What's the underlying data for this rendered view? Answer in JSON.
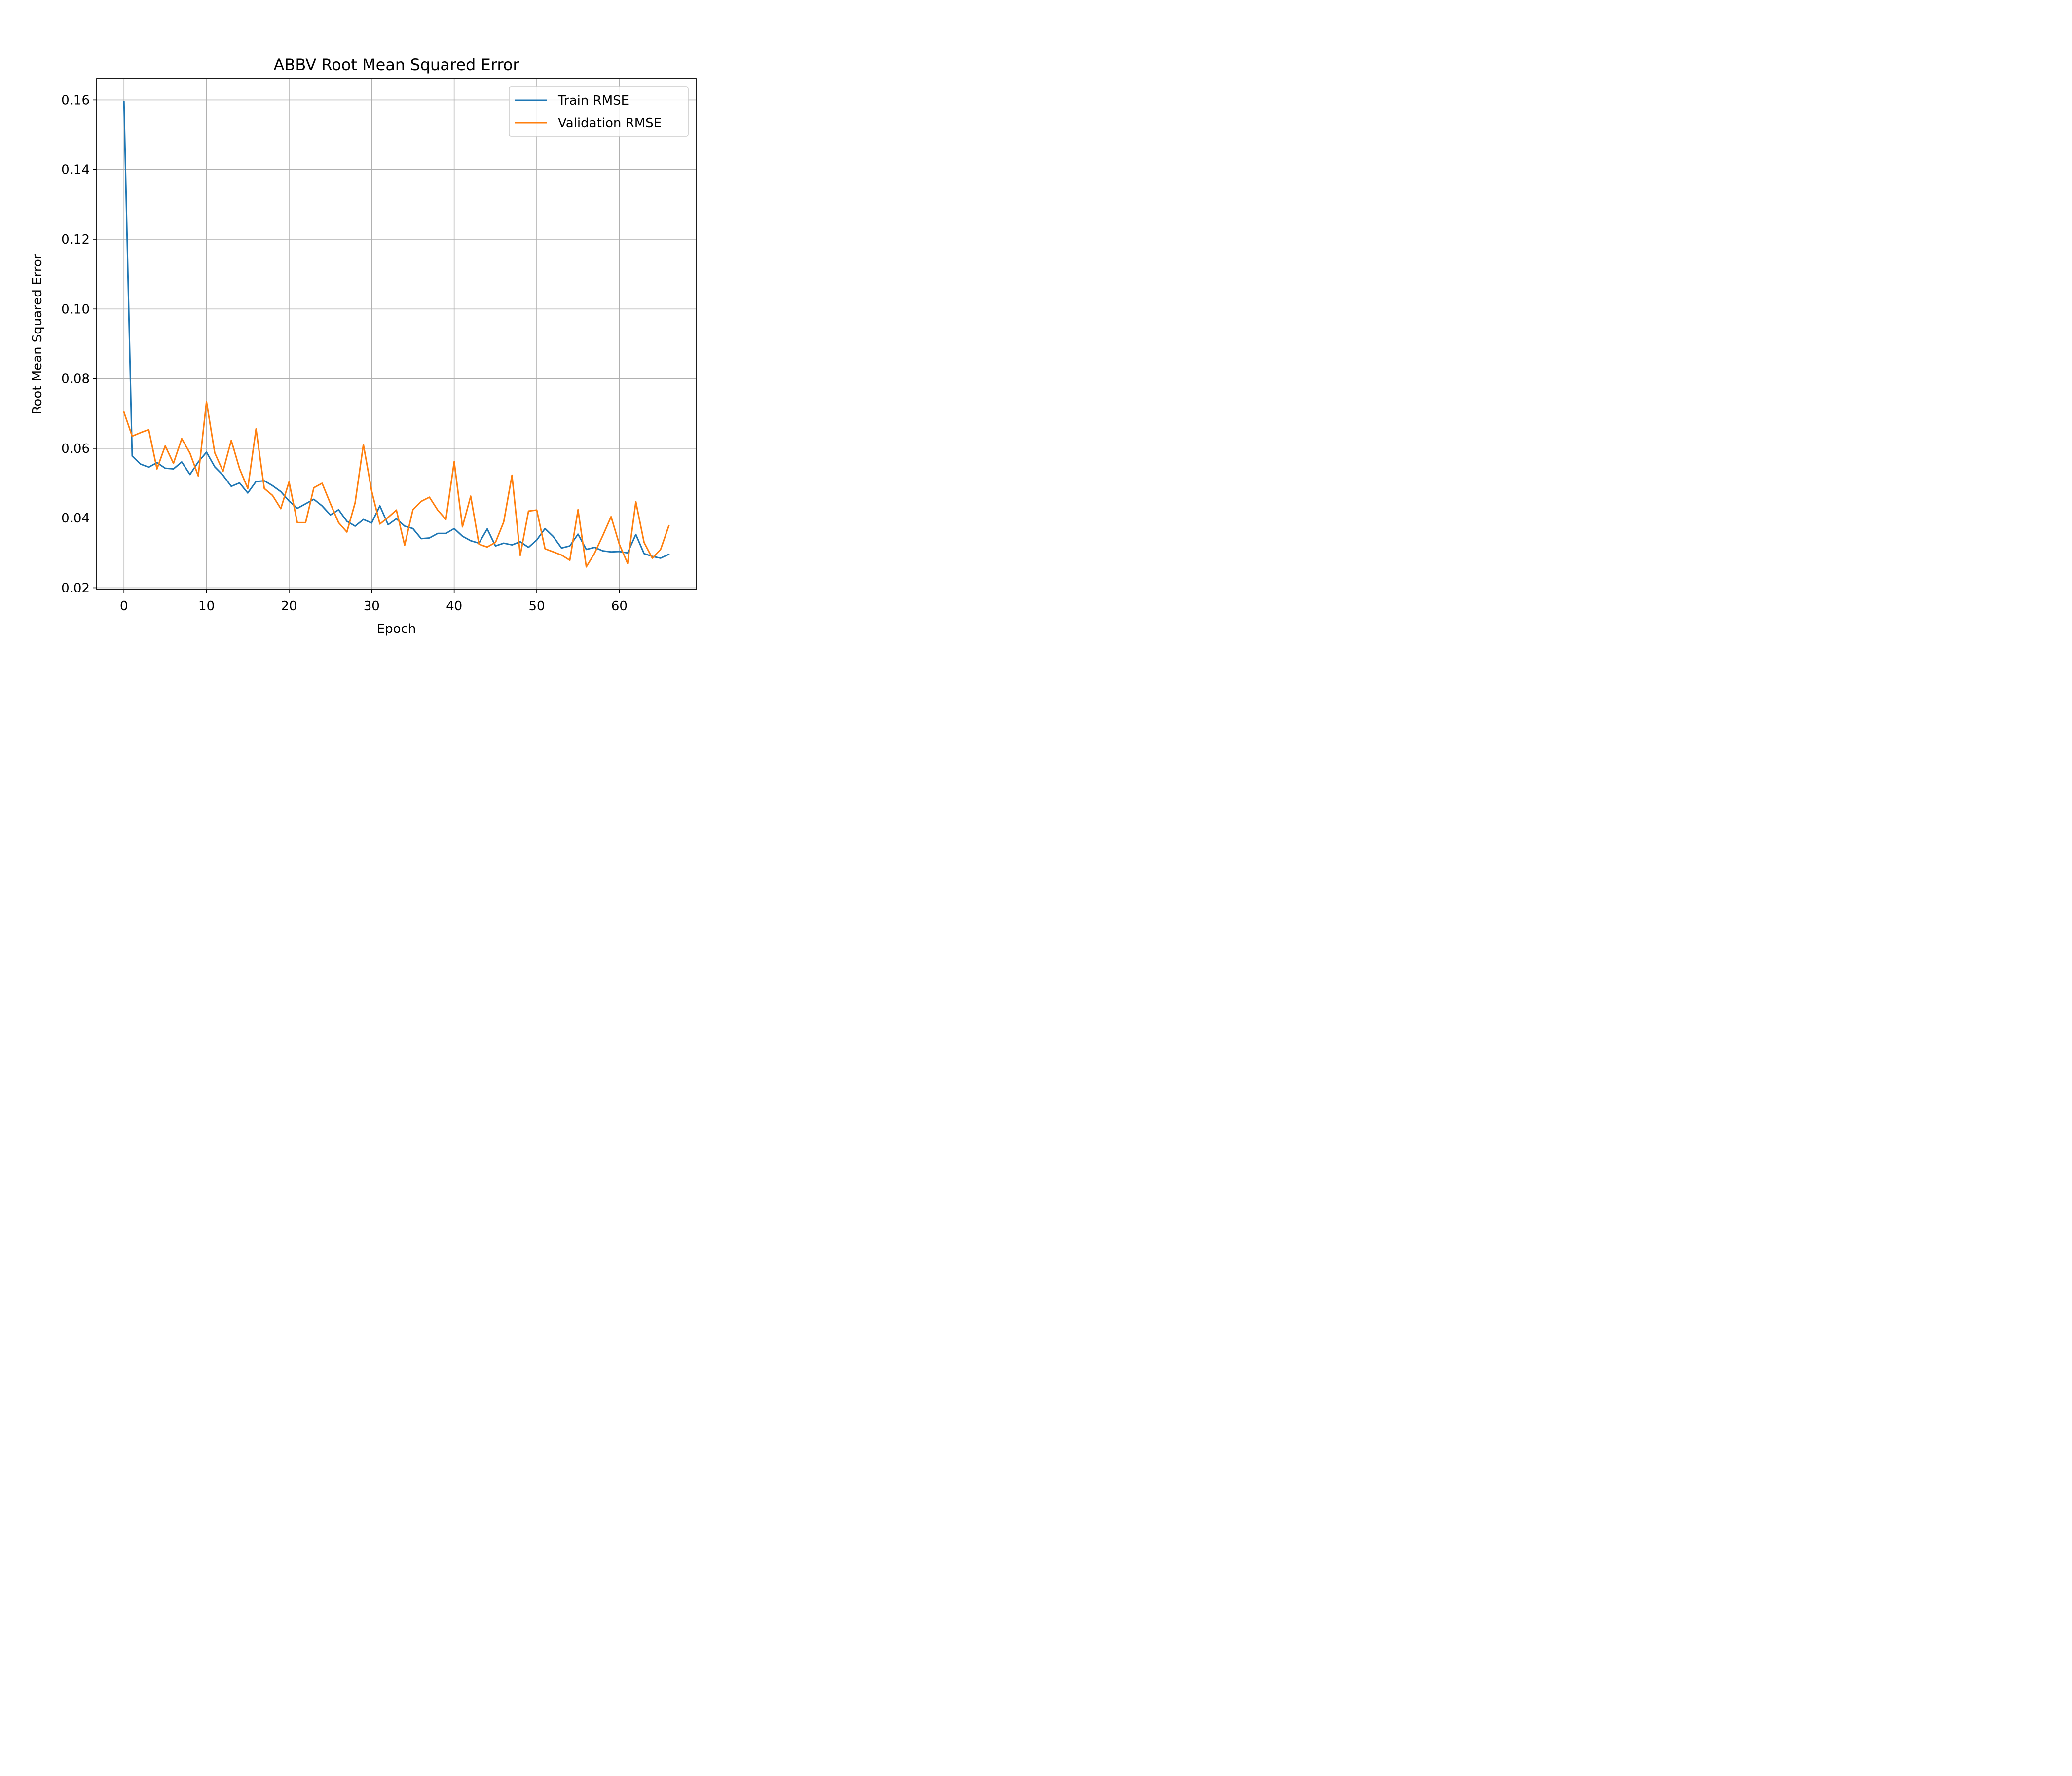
{
  "chart_data": {
    "type": "line",
    "title": "ABBV Root Mean Squared Error",
    "xlabel": "Epoch",
    "ylabel": "Root Mean Squared Error",
    "xlim": [
      -3.3,
      69.3
    ],
    "ylim": [
      0.0195,
      0.166
    ],
    "xticks": [
      0,
      10,
      20,
      30,
      40,
      50,
      60
    ],
    "xtick_labels": [
      "0",
      "10",
      "20",
      "30",
      "40",
      "50",
      "60"
    ],
    "yticks": [
      0.02,
      0.04,
      0.06,
      0.08,
      0.1,
      0.12,
      0.14,
      0.16
    ],
    "ytick_labels": [
      "0.02",
      "0.04",
      "0.06",
      "0.08",
      "0.10",
      "0.12",
      "0.14",
      "0.16"
    ],
    "grid": true,
    "legend_position": "top-right",
    "x": [
      0,
      1,
      2,
      3,
      4,
      5,
      6,
      7,
      8,
      9,
      10,
      11,
      12,
      13,
      14,
      15,
      16,
      17,
      18,
      19,
      20,
      21,
      22,
      23,
      24,
      25,
      26,
      27,
      28,
      29,
      30,
      31,
      32,
      33,
      34,
      35,
      36,
      37,
      38,
      39,
      40,
      41,
      42,
      43,
      44,
      45,
      46,
      47,
      48,
      49,
      50,
      51,
      52,
      53,
      54,
      55,
      56,
      57,
      58,
      59,
      60,
      61,
      62,
      63,
      64,
      65,
      66
    ],
    "series": [
      {
        "name": "Train RMSE",
        "color": "#1f77b4",
        "values": [
          0.1595,
          0.0578,
          0.0555,
          0.0546,
          0.0559,
          0.0543,
          0.0541,
          0.0561,
          0.0525,
          0.0561,
          0.0589,
          0.0547,
          0.0523,
          0.0491,
          0.0501,
          0.0472,
          0.0505,
          0.0507,
          0.0493,
          0.0476,
          0.0449,
          0.0428,
          0.0441,
          0.0454,
          0.0435,
          0.0409,
          0.0424,
          0.0391,
          0.0377,
          0.0396,
          0.0386,
          0.0435,
          0.0381,
          0.0398,
          0.0377,
          0.037,
          0.0341,
          0.0343,
          0.0356,
          0.0356,
          0.037,
          0.0348,
          0.0335,
          0.0328,
          0.0369,
          0.032,
          0.0328,
          0.0323,
          0.0332,
          0.0316,
          0.0337,
          0.037,
          0.0347,
          0.0314,
          0.032,
          0.0354,
          0.031,
          0.0316,
          0.0306,
          0.0303,
          0.0304,
          0.03,
          0.0353,
          0.0298,
          0.029,
          0.0285,
          0.0296
        ]
      },
      {
        "name": "Validation RMSE",
        "color": "#ff7f0e",
        "values": [
          0.0704,
          0.0635,
          0.0645,
          0.0654,
          0.0541,
          0.0607,
          0.0557,
          0.0628,
          0.0586,
          0.0521,
          0.0734,
          0.0587,
          0.0534,
          0.0623,
          0.0542,
          0.0485,
          0.0656,
          0.0485,
          0.0465,
          0.0427,
          0.0504,
          0.0387,
          0.0387,
          0.0487,
          0.05,
          0.0442,
          0.0387,
          0.036,
          0.0444,
          0.0611,
          0.0478,
          0.0383,
          0.0402,
          0.0423,
          0.0322,
          0.0424,
          0.0448,
          0.046,
          0.0423,
          0.0396,
          0.0562,
          0.0375,
          0.0463,
          0.0325,
          0.0317,
          0.033,
          0.0389,
          0.0523,
          0.0293,
          0.042,
          0.0423,
          0.0312,
          0.0303,
          0.0294,
          0.0279,
          0.0424,
          0.026,
          0.0299,
          0.035,
          0.0404,
          0.0325,
          0.027,
          0.0447,
          0.033,
          0.0285,
          0.031,
          0.0378
        ]
      }
    ]
  }
}
